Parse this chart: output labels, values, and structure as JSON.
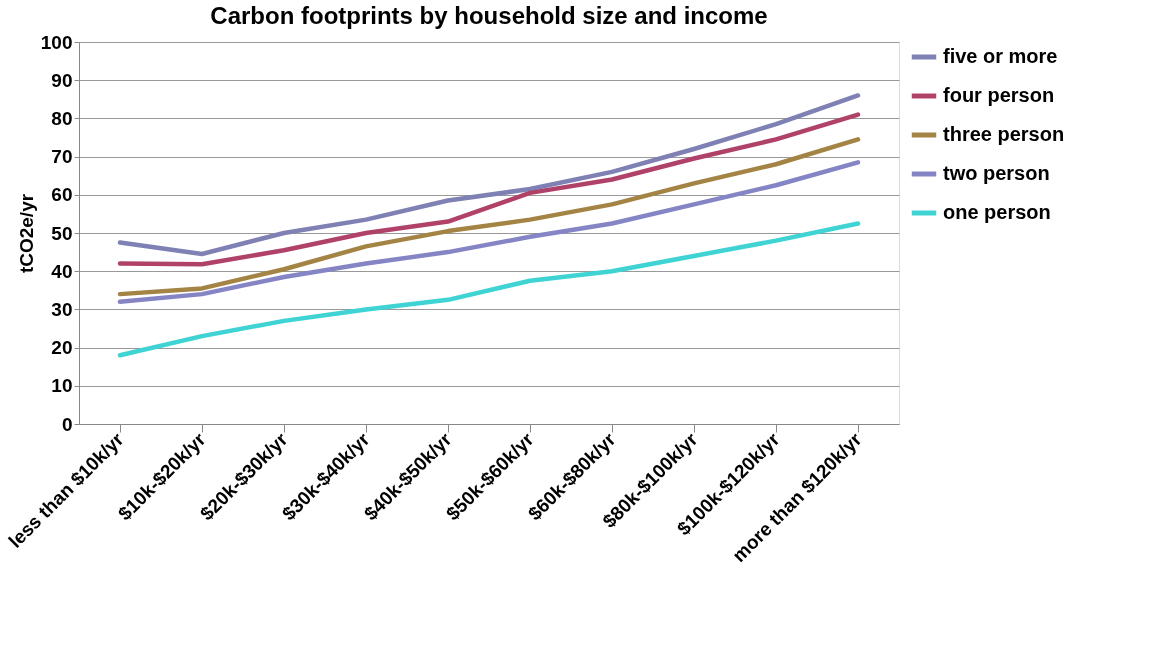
{
  "chart_data": {
    "type": "line",
    "title": "Carbon footprints by household size and income",
    "ylabel": "tCO2e/yr",
    "categories": [
      "less than $10k/yr",
      "$10k-$20k/yr",
      "$20k-$30k/yr",
      "$30k-$40k/yr",
      "$40k-$50k/yr",
      "$50k-$60k/yr",
      "$60k-$80k/yr",
      "$80k-$100k/yr",
      "$100k-$120k/yr",
      "more than $120k/yr"
    ],
    "series": [
      {
        "name": "five or more",
        "color": "#7f80b4",
        "values": [
          47.5,
          44.5,
          50,
          53.5,
          58.5,
          61.5,
          66,
          72,
          78.5,
          86
        ]
      },
      {
        "name": "four person",
        "color": "#b0426a",
        "values": [
          42,
          41.8,
          45.5,
          50,
          53,
          60.5,
          64,
          69.5,
          74.5,
          81
        ]
      },
      {
        "name": "three person",
        "color": "#a48445",
        "values": [
          34,
          35.5,
          40.5,
          46.5,
          50.5,
          53.5,
          57.5,
          63,
          68,
          74.5
        ]
      },
      {
        "name": "two person",
        "color": "#8585c6",
        "values": [
          32,
          34,
          38.5,
          42,
          45,
          49,
          52.5,
          57.5,
          62.5,
          68.5
        ]
      },
      {
        "name": "one person",
        "color": "#3fd3d3",
        "values": [
          18,
          23,
          27,
          30,
          32.5,
          37.5,
          40,
          44,
          48,
          52.5
        ]
      }
    ],
    "ylim": [
      0,
      100
    ],
    "yticks": [
      0,
      10,
      20,
      30,
      40,
      50,
      60,
      70,
      80,
      90,
      100
    ],
    "grid": "y",
    "legend": "right",
    "marker": "none",
    "line_style": "solid"
  }
}
